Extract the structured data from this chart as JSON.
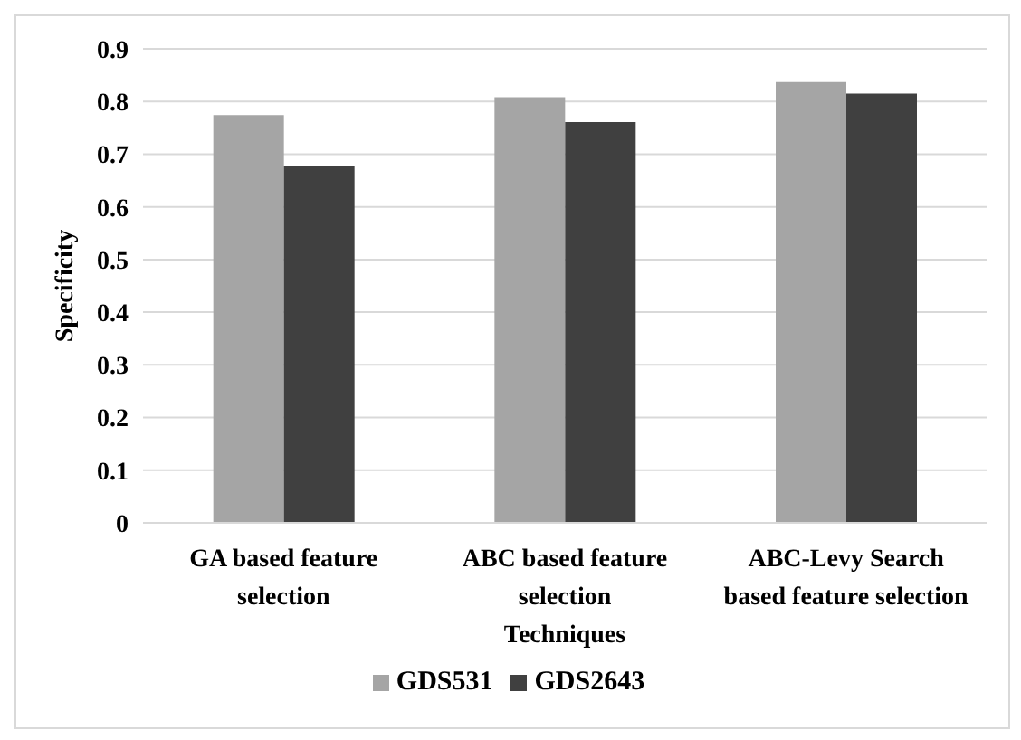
{
  "chart_data": {
    "type": "bar",
    "xlabel": "Techniques",
    "ylabel": "Specificity",
    "categories": [
      "GA based feature selection",
      "ABC based feature selection",
      "ABC-Levy Search based feature selection"
    ],
    "series": [
      {
        "name": "GDS531",
        "color": "#a5a5a5",
        "values": [
          0.774,
          0.808,
          0.837
        ]
      },
      {
        "name": "GDS2643",
        "color": "#404040",
        "values": [
          0.677,
          0.761,
          0.815
        ]
      }
    ],
    "ylim": [
      0,
      0.9
    ],
    "yticks": [
      0,
      0.1,
      0.2,
      0.3,
      0.4,
      0.5,
      0.6,
      0.7,
      0.8,
      0.9
    ],
    "grid": "y",
    "legend": "bottom"
  }
}
